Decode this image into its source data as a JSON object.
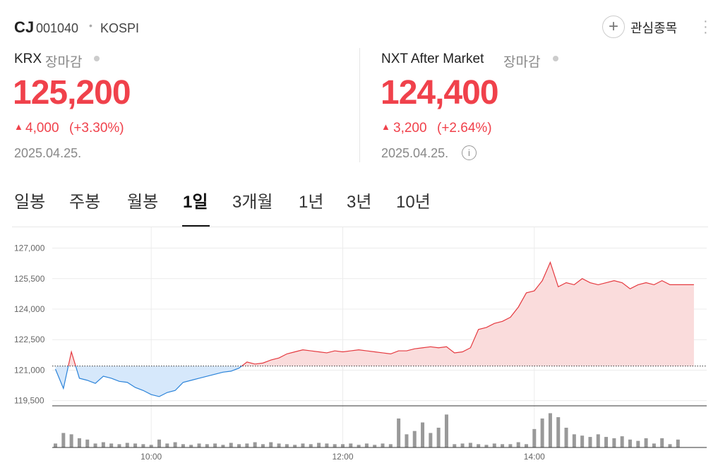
{
  "header": {
    "name": "CJ",
    "code": "001040",
    "market": "KOSPI",
    "watch": "관심종목"
  },
  "krx": {
    "label": "KRX",
    "status": "장마감",
    "price": "125,200",
    "change": "4,000",
    "rate": "(+3.30%)",
    "date": "2025.04.25."
  },
  "nxt": {
    "label": "NXT After Market",
    "status": "장마감",
    "price": "124,400",
    "change": "3,200",
    "rate": "(+2.64%)",
    "date": "2025.04.25."
  },
  "tabs": [
    "일봉",
    "주봉",
    "월봉",
    "1일",
    "3개월",
    "1년",
    "3년",
    "10년"
  ],
  "active_tab": 3,
  "chart_data": {
    "type": "line",
    "x": [
      0,
      5,
      10,
      15,
      20,
      25,
      30,
      35,
      40,
      45,
      50,
      55,
      60,
      65,
      70,
      75,
      80,
      85,
      90,
      95,
      100,
      105,
      110,
      115,
      120,
      125,
      130,
      135,
      140,
      145,
      150,
      155,
      160,
      165,
      170,
      175,
      180,
      185,
      190,
      195,
      200,
      205,
      210,
      215,
      220,
      225,
      230,
      235,
      240,
      245,
      250,
      255,
      260,
      265,
      270,
      275,
      280,
      285,
      290,
      295,
      300,
      305,
      310,
      315,
      320,
      325,
      330,
      335,
      340,
      345,
      350,
      355,
      360,
      365,
      370,
      375,
      380,
      385,
      390,
      400
    ],
    "values": [
      121050,
      120100,
      121900,
      120600,
      120500,
      120350,
      120700,
      120600,
      120450,
      120400,
      120150,
      120000,
      119800,
      119700,
      119900,
      120000,
      120400,
      120500,
      120600,
      120700,
      120800,
      120900,
      120950,
      121100,
      121400,
      121300,
      121350,
      121500,
      121600,
      121800,
      121900,
      122000,
      121950,
      121900,
      121850,
      121950,
      121900,
      121950,
      122000,
      121950,
      121900,
      121850,
      121800,
      121950,
      121950,
      122050,
      122100,
      122150,
      122100,
      122150,
      121850,
      121900,
      122100,
      123000,
      123100,
      123300,
      123400,
      123600,
      124100,
      124800,
      124900,
      125400,
      126300,
      125100,
      125300,
      125200,
      125500,
      125300,
      125200,
      125300,
      125400,
      125300,
      125000,
      125200,
      125300,
      125200,
      125400,
      125200,
      125200,
      125200
    ],
    "reference": 121200,
    "up_color": "#e5393f",
    "down_color": "#2b83d9",
    "up_fill": "#fadcdc",
    "down_fill": "#d6e8fb",
    "xlim": [
      -2,
      408
    ],
    "xticks": [
      {
        "value": 60,
        "label": "10:00"
      },
      {
        "value": 180,
        "label": "12:00"
      },
      {
        "value": 300,
        "label": "14:00"
      }
    ],
    "ylim": [
      119350,
      127400
    ],
    "yticks": [
      {
        "value": 119500,
        "label": "119,500"
      },
      {
        "value": 121000,
        "label": "121,000"
      },
      {
        "value": 122500,
        "label": "122,500"
      },
      {
        "value": 124000,
        "label": "124,000"
      },
      {
        "value": 125500,
        "label": "125,500"
      },
      {
        "value": 127000,
        "label": "127,000"
      }
    ],
    "grid": true,
    "volume": [
      6,
      22,
      20,
      14,
      12,
      6,
      8,
      6,
      5,
      7,
      6,
      5,
      4,
      12,
      6,
      8,
      5,
      4,
      6,
      5,
      6,
      4,
      7,
      5,
      6,
      8,
      5,
      8,
      6,
      5,
      4,
      6,
      5,
      7,
      6,
      5,
      5,
      6,
      4,
      6,
      4,
      6,
      5,
      44,
      20,
      25,
      38,
      22,
      30,
      50,
      5,
      6,
      7,
      5,
      4,
      6,
      5,
      5,
      8,
      5,
      28,
      44,
      52,
      46,
      30,
      20,
      18,
      16,
      20,
      16,
      14,
      17,
      12,
      10,
      14,
      6,
      14,
      5,
      12,
      0
    ],
    "volume_lim": [
      0,
      60
    ],
    "volume_color": "#999999"
  }
}
